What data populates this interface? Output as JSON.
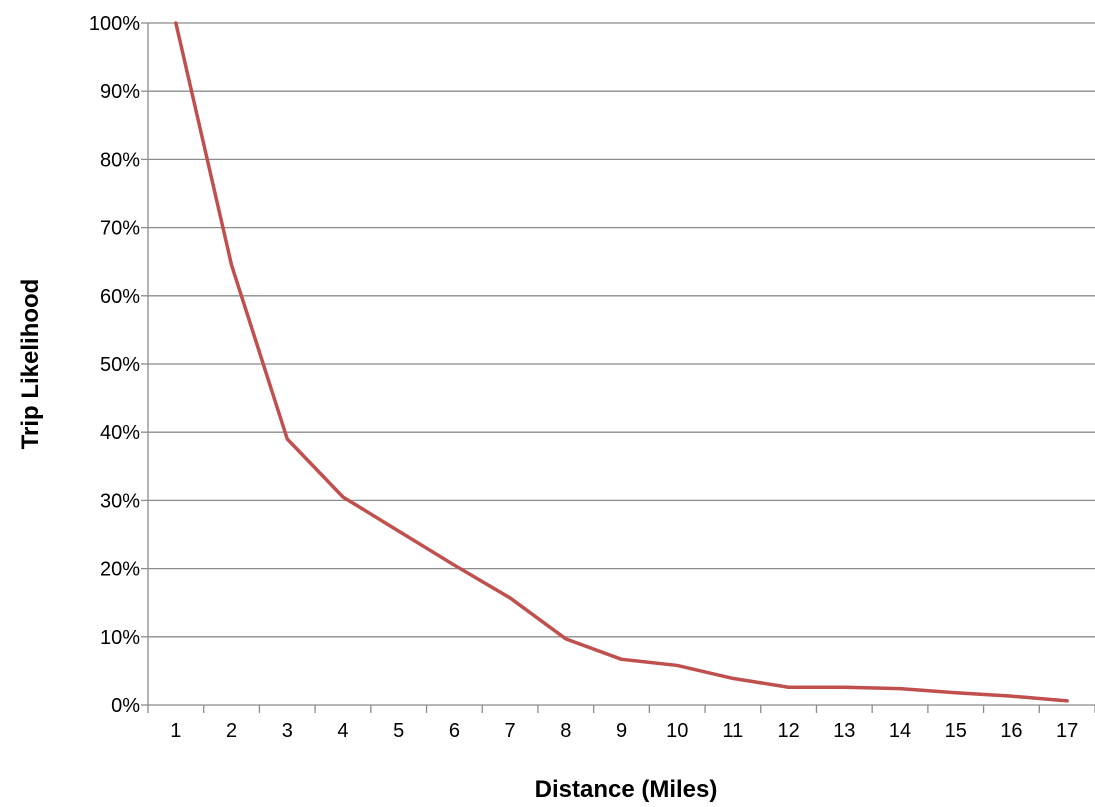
{
  "chart_data": {
    "type": "line",
    "title": "",
    "xlabel": "Distance (Miles)",
    "ylabel": "Trip Likelihood",
    "categories": [
      "1",
      "2",
      "3",
      "4",
      "5",
      "6",
      "7",
      "8",
      "9",
      "10",
      "11",
      "12",
      "13",
      "14",
      "15",
      "16",
      "17"
    ],
    "y_tick_labels": [
      "0%",
      "10%",
      "20%",
      "30%",
      "40%",
      "50%",
      "60%",
      "70%",
      "80%",
      "90%",
      "100%"
    ],
    "ylim": [
      0,
      100
    ],
    "y_unit": "%",
    "grid": "horizontal",
    "legend": "none",
    "series": [
      {
        "values": [
          100,
          64.5,
          39,
          30.5,
          25.5,
          20.5,
          15.7,
          9.7,
          6.7,
          5.8,
          3.9,
          2.6,
          2.6,
          2.4,
          1.8,
          1.3,
          0.6
        ],
        "color": "#c0504d"
      }
    ]
  }
}
